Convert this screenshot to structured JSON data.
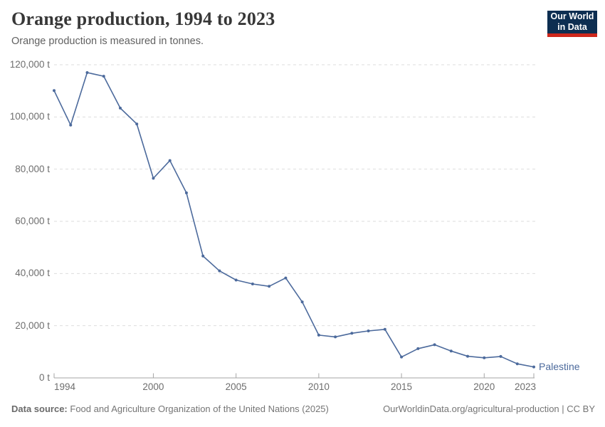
{
  "header": {
    "title": "Orange production, 1994 to 2023",
    "subtitle": "Orange production is measured in tonnes."
  },
  "logo": {
    "line1": "Our World",
    "line2": "in Data",
    "bg_color": "#0d2e51",
    "stripe_color": "#cd271c"
  },
  "chart_data": {
    "type": "line",
    "title": "Orange production, 1994 to 2023",
    "subtitle": "Orange production is measured in tonnes.",
    "unit": "t",
    "x": [
      1994,
      1995,
      1996,
      1997,
      1998,
      1999,
      2000,
      2001,
      2002,
      2003,
      2004,
      2005,
      2006,
      2007,
      2008,
      2009,
      2010,
      2011,
      2012,
      2013,
      2014,
      2015,
      2016,
      2017,
      2018,
      2019,
      2020,
      2021,
      2022,
      2023
    ],
    "series": [
      {
        "name": "Palestine",
        "color": "#4C6A9C",
        "values": [
          110100,
          96900,
          117000,
          115600,
          103400,
          97300,
          76500,
          83300,
          70900,
          46700,
          41000,
          37500,
          36000,
          35100,
          38300,
          29100,
          16400,
          15700,
          17100,
          18000,
          18600,
          8000,
          11200,
          12700,
          10300,
          8300,
          7700,
          8200,
          5400,
          4200
        ]
      }
    ],
    "xlabel": "",
    "ylabel": "",
    "xlim": [
      1994,
      2023
    ],
    "ylim": [
      0,
      120000
    ],
    "xticks": [
      1994,
      2000,
      2005,
      2010,
      2015,
      2020,
      2023
    ],
    "yticks": [
      0,
      20000,
      40000,
      60000,
      80000,
      100000,
      120000
    ],
    "grid": "horizontal-dashed",
    "legend": "line-end-label"
  },
  "colors": {
    "grid": "#dddddd",
    "axis": "#a5a5a5",
    "tick_text": "#6e6e6e"
  },
  "footer": {
    "source_label": "Data source:",
    "source_text": "Food and Agriculture Organization of the United Nations (2025)",
    "credit": "OurWorldinData.org/agricultural-production | CC BY"
  }
}
